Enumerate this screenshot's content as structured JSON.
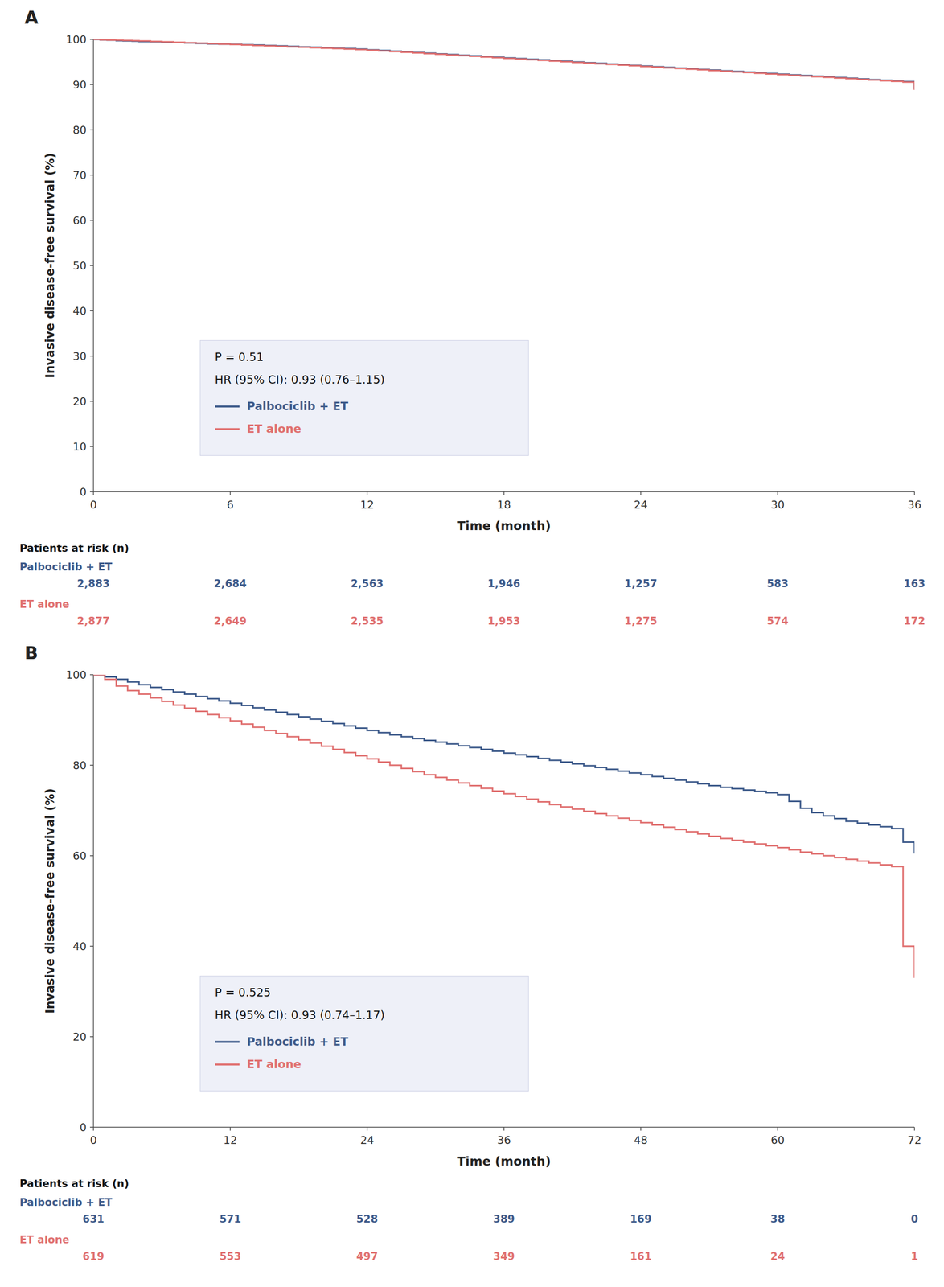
{
  "chart_data": [
    {
      "type": "line",
      "title": "A",
      "x": [
        0,
        0.3,
        0.6,
        1,
        1.3,
        1.7,
        2,
        2.5,
        3,
        3.5,
        4,
        4.5,
        5,
        5.5,
        6,
        6.5,
        7,
        7.5,
        8,
        8.5,
        9,
        9.5,
        10,
        10.5,
        11,
        11.5,
        12,
        12.5,
        13,
        13.5,
        14,
        14.5,
        15,
        15.5,
        16,
        16.5,
        17,
        17.5,
        18,
        18.5,
        19,
        19.5,
        20,
        20.5,
        21,
        21.5,
        22,
        22.5,
        23,
        23.5,
        24,
        24.5,
        25,
        25.5,
        26,
        26.5,
        27,
        27.5,
        28,
        28.5,
        29,
        29.5,
        30,
        30.5,
        31,
        31.5,
        32,
        32.5,
        33,
        33.5,
        34,
        34.5,
        35,
        35.5,
        36
      ],
      "series": [
        {
          "name": "Palbociclib + ET",
          "color": "#3d5a8a",
          "line_style": "step",
          "values": [
            100,
            99.9,
            99.8,
            99.7,
            99.65,
            99.6,
            99.5,
            99.45,
            99.4,
            99.3,
            99.2,
            99.1,
            99.0,
            98.95,
            98.9,
            98.8,
            98.75,
            98.65,
            98.55,
            98.45,
            98.35,
            98.25,
            98.15,
            98.05,
            97.95,
            97.85,
            97.7,
            97.55,
            97.4,
            97.25,
            97.1,
            96.95,
            96.8,
            96.65,
            96.5,
            96.35,
            96.2,
            96.05,
            95.9,
            95.75,
            95.6,
            95.45,
            95.3,
            95.15,
            95.0,
            94.85,
            94.7,
            94.55,
            94.4,
            94.25,
            94.1,
            93.95,
            93.8,
            93.65,
            93.5,
            93.35,
            93.2,
            93.05,
            92.9,
            92.75,
            92.6,
            92.45,
            92.3,
            92.15,
            92.0,
            91.85,
            91.7,
            91.55,
            91.4,
            91.25,
            91.1,
            90.95,
            90.8,
            90.65,
            89.0
          ]
        },
        {
          "name": "ET alone",
          "color": "#e07070",
          "line_style": "step",
          "values": [
            100,
            99.9,
            99.85,
            99.8,
            99.75,
            99.7,
            99.65,
            99.55,
            99.45,
            99.35,
            99.25,
            99.15,
            99.05,
            98.95,
            98.85,
            98.75,
            98.65,
            98.55,
            98.45,
            98.35,
            98.25,
            98.15,
            98.05,
            97.95,
            97.85,
            97.75,
            97.6,
            97.45,
            97.3,
            97.15,
            97.0,
            96.85,
            96.7,
            96.55,
            96.4,
            96.25,
            96.1,
            95.95,
            95.8,
            95.65,
            95.5,
            95.35,
            95.2,
            95.05,
            94.9,
            94.75,
            94.6,
            94.45,
            94.3,
            94.15,
            94.0,
            93.85,
            93.7,
            93.55,
            93.4,
            93.25,
            93.1,
            92.95,
            92.8,
            92.65,
            92.5,
            92.35,
            92.2,
            92.05,
            91.9,
            91.75,
            91.6,
            91.45,
            91.3,
            91.15,
            91.0,
            90.85,
            90.7,
            90.55,
            88.8
          ]
        }
      ],
      "x_label": "Time (month)",
      "y_label": "Invasive disease-free survival (%)",
      "xlim": [
        0,
        36
      ],
      "ylim": [
        0,
        100
      ],
      "xticks": [
        0,
        6,
        12,
        18,
        24,
        30,
        36
      ],
      "yticks": [
        0,
        10,
        20,
        30,
        40,
        50,
        60,
        70,
        80,
        90,
        100
      ],
      "annotations": [
        "P = 0.51",
        "HR (95% CI): 0.93 (0.76–1.15)"
      ],
      "legend": "lower left",
      "grid": false,
      "at_risk": {
        "title": "Patients at risk (n)",
        "times": [
          0,
          6,
          12,
          18,
          24,
          30,
          36
        ],
        "rows": [
          {
            "name": "Palbociclib + ET",
            "color": "#3d5a8a",
            "values": [
              2883,
              2684,
              2563,
              1946,
              1257,
              583,
              163
            ],
            "value_labels": [
              "2,883",
              "2,684",
              "2,563",
              "1,946",
              "1,257",
              "583",
              "163"
            ]
          },
          {
            "name": "ET alone",
            "color": "#e07070",
            "values": [
              2877,
              2649,
              2535,
              1953,
              1275,
              574,
              172
            ],
            "value_labels": [
              "2,877",
              "2,649",
              "2,535",
              "1,953",
              "1,275",
              "574",
              "172"
            ]
          }
        ]
      }
    },
    {
      "type": "line",
      "title": "B",
      "x": [
        0,
        1,
        2,
        3,
        4,
        5,
        6,
        7,
        8,
        9,
        10,
        11,
        12,
        13,
        14,
        15,
        16,
        17,
        18,
        19,
        20,
        21,
        22,
        23,
        24,
        25,
        26,
        27,
        28,
        29,
        30,
        31,
        32,
        33,
        34,
        35,
        36,
        37,
        38,
        39,
        40,
        41,
        42,
        43,
        44,
        45,
        46,
        47,
        48,
        49,
        50,
        51,
        52,
        53,
        54,
        55,
        56,
        57,
        58,
        59,
        60,
        61,
        62,
        63,
        64,
        65,
        66,
        67,
        68,
        69,
        70,
        71,
        72
      ],
      "series": [
        {
          "name": "Palbociclib + ET",
          "color": "#3d5a8a",
          "line_style": "step",
          "values": [
            100,
            99.5,
            99.0,
            98.4,
            97.8,
            97.2,
            96.7,
            96.2,
            95.7,
            95.2,
            94.7,
            94.2,
            93.7,
            93.2,
            92.7,
            92.2,
            91.7,
            91.2,
            90.7,
            90.2,
            89.7,
            89.2,
            88.7,
            88.2,
            87.7,
            87.2,
            86.7,
            86.3,
            85.9,
            85.5,
            85.1,
            84.7,
            84.3,
            83.9,
            83.5,
            83.1,
            82.7,
            82.3,
            81.9,
            81.5,
            81.1,
            80.7,
            80.3,
            79.9,
            79.5,
            79.1,
            78.7,
            78.3,
            77.9,
            77.5,
            77.1,
            76.7,
            76.3,
            75.9,
            75.5,
            75.1,
            74.8,
            74.5,
            74.2,
            73.9,
            73.5,
            72.0,
            70.5,
            69.5,
            68.8,
            68.2,
            67.6,
            67.2,
            66.8,
            66.4,
            66.0,
            63.0,
            60.5
          ]
        },
        {
          "name": "ET alone",
          "color": "#e07070",
          "line_style": "step",
          "values": [
            100,
            99.0,
            97.5,
            96.5,
            95.7,
            94.9,
            94.1,
            93.3,
            92.6,
            91.9,
            91.2,
            90.5,
            89.8,
            89.1,
            88.4,
            87.7,
            87.0,
            86.3,
            85.6,
            84.9,
            84.2,
            83.5,
            82.8,
            82.1,
            81.4,
            80.7,
            80.0,
            79.3,
            78.6,
            77.9,
            77.3,
            76.7,
            76.1,
            75.5,
            74.9,
            74.3,
            73.7,
            73.1,
            72.5,
            71.9,
            71.3,
            70.8,
            70.3,
            69.8,
            69.3,
            68.8,
            68.3,
            67.8,
            67.3,
            66.8,
            66.3,
            65.8,
            65.3,
            64.8,
            64.3,
            63.8,
            63.4,
            63.0,
            62.6,
            62.2,
            61.8,
            61.3,
            60.8,
            60.4,
            60.0,
            59.6,
            59.2,
            58.8,
            58.4,
            58.0,
            57.6,
            40.0,
            33.0
          ]
        }
      ],
      "x_label": "Time (month)",
      "y_label": "Invasive disease-free survival (%)",
      "xlim": [
        0,
        72
      ],
      "ylim": [
        0,
        100
      ],
      "xticks": [
        0,
        12,
        24,
        36,
        48,
        60,
        72
      ],
      "yticks": [
        0,
        20,
        40,
        60,
        80,
        100
      ],
      "annotations": [
        "P = 0.525",
        "HR (95% CI): 0.93 (0.74–1.17)"
      ],
      "legend": "lower left",
      "grid": false,
      "at_risk": {
        "title": "Patients at risk (n)",
        "times": [
          0,
          12,
          24,
          36,
          48,
          60,
          72
        ],
        "rows": [
          {
            "name": "Palbociclib + ET",
            "color": "#3d5a8a",
            "values": [
              631,
              571,
              528,
              389,
              169,
              38,
              0
            ],
            "value_labels": [
              "631",
              "571",
              "528",
              "389",
              "169",
              "38",
              "0"
            ]
          },
          {
            "name": "ET alone",
            "color": "#e07070",
            "values": [
              619,
              553,
              497,
              349,
              161,
              24,
              1
            ],
            "value_labels": [
              "619",
              "553",
              "497",
              "349",
              "161",
              "24",
              "1"
            ]
          }
        ]
      }
    }
  ]
}
